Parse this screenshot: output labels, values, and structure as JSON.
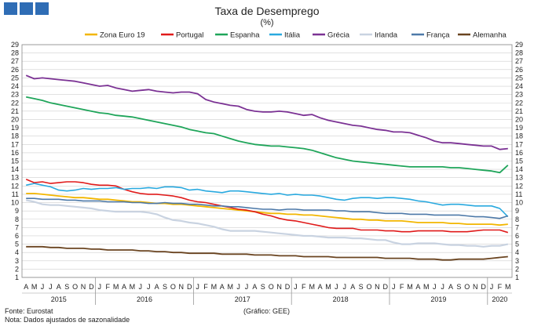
{
  "chart_data": {
    "type": "line",
    "title": "Taxa de Desemprego",
    "subtitle": "(%)",
    "ylim": [
      1,
      29
    ],
    "yticks": [
      1,
      2,
      3,
      4,
      5,
      6,
      7,
      8,
      9,
      10,
      11,
      12,
      13,
      14,
      15,
      16,
      17,
      18,
      19,
      20,
      21,
      22,
      23,
      24,
      25,
      26,
      27,
      28,
      29
    ],
    "month_labels": [
      "A",
      "M",
      "J",
      "J",
      "A",
      "S",
      "O",
      "N",
      "D",
      "J",
      "F",
      "M",
      "A",
      "M",
      "J",
      "J",
      "A",
      "S",
      "O",
      "N",
      "D",
      "J",
      "F",
      "M",
      "A",
      "M",
      "J",
      "J",
      "A",
      "S",
      "O",
      "N",
      "D",
      "J",
      "F",
      "M",
      "A",
      "M",
      "J",
      "J",
      "A",
      "S",
      "O",
      "N",
      "D",
      "J",
      "F",
      "M",
      "A",
      "M",
      "J",
      "J",
      "A",
      "S",
      "O",
      "N",
      "D",
      "J",
      "F",
      "M"
    ],
    "years": [
      {
        "label": "2015",
        "start": 0,
        "end": 8
      },
      {
        "label": "2016",
        "start": 9,
        "end": 20
      },
      {
        "label": "2017",
        "start": 21,
        "end": 32
      },
      {
        "label": "2018",
        "start": 33,
        "end": 44
      },
      {
        "label": "2019",
        "start": 45,
        "end": 56
      },
      {
        "label": "2020",
        "start": 57,
        "end": 59
      }
    ],
    "series": [
      {
        "name": "Zona Euro 19",
        "color": "#f2b600",
        "width": 1.8,
        "values": [
          11.1,
          11.1,
          11.0,
          10.9,
          10.8,
          10.7,
          10.6,
          10.6,
          10.5,
          10.4,
          10.4,
          10.3,
          10.2,
          10.1,
          10.1,
          10.0,
          9.9,
          9.9,
          9.8,
          9.8,
          9.7,
          9.6,
          9.5,
          9.4,
          9.3,
          9.2,
          9.1,
          9.0,
          8.9,
          8.8,
          8.7,
          8.7,
          8.6,
          8.6,
          8.5,
          8.5,
          8.4,
          8.3,
          8.2,
          8.1,
          8.0,
          8.0,
          7.9,
          7.9,
          7.8,
          7.8,
          7.8,
          7.7,
          7.6,
          7.6,
          7.6,
          7.6,
          7.5,
          7.5,
          7.4,
          7.4,
          7.4,
          7.4,
          7.3,
          7.4
        ]
      },
      {
        "name": "Portugal",
        "color": "#e01a1a",
        "width": 1.6,
        "values": [
          12.8,
          12.4,
          12.5,
          12.3,
          12.4,
          12.5,
          12.5,
          12.4,
          12.2,
          12.1,
          12.1,
          12.0,
          11.6,
          11.3,
          11.1,
          11.0,
          11.0,
          10.9,
          10.8,
          10.6,
          10.3,
          10.1,
          10.0,
          9.8,
          9.6,
          9.4,
          9.2,
          9.1,
          8.9,
          8.6,
          8.4,
          8.1,
          7.9,
          7.8,
          7.6,
          7.4,
          7.2,
          7.0,
          6.9,
          6.9,
          6.9,
          6.7,
          6.7,
          6.7,
          6.6,
          6.6,
          6.5,
          6.5,
          6.6,
          6.6,
          6.6,
          6.6,
          6.5,
          6.5,
          6.5,
          6.6,
          6.7,
          6.7,
          6.7,
          6.4
        ]
      },
      {
        "name": "Espanha",
        "color": "#1fa55a",
        "width": 1.8,
        "values": [
          22.7,
          22.5,
          22.3,
          22.0,
          21.8,
          21.6,
          21.4,
          21.2,
          21.0,
          20.8,
          20.7,
          20.5,
          20.4,
          20.3,
          20.1,
          19.9,
          19.7,
          19.5,
          19.3,
          19.1,
          18.8,
          18.6,
          18.4,
          18.3,
          18.0,
          17.7,
          17.4,
          17.2,
          17.0,
          16.9,
          16.8,
          16.8,
          16.7,
          16.6,
          16.5,
          16.3,
          16.0,
          15.7,
          15.4,
          15.2,
          15.0,
          14.9,
          14.8,
          14.7,
          14.6,
          14.5,
          14.4,
          14.3,
          14.3,
          14.3,
          14.3,
          14.3,
          14.2,
          14.2,
          14.1,
          14.0,
          13.9,
          13.8,
          13.6,
          14.5
        ]
      },
      {
        "name": "Itália",
        "color": "#29a9df",
        "width": 1.6,
        "values": [
          12.1,
          12.3,
          12.1,
          11.9,
          11.5,
          11.4,
          11.5,
          11.7,
          11.6,
          11.7,
          11.7,
          11.8,
          11.6,
          11.7,
          11.7,
          11.8,
          11.7,
          11.9,
          11.9,
          11.8,
          11.5,
          11.6,
          11.4,
          11.3,
          11.2,
          11.4,
          11.4,
          11.3,
          11.2,
          11.1,
          11.0,
          11.1,
          10.9,
          11.0,
          10.9,
          10.9,
          10.8,
          10.6,
          10.4,
          10.3,
          10.5,
          10.6,
          10.6,
          10.5,
          10.6,
          10.6,
          10.5,
          10.4,
          10.2,
          10.1,
          9.9,
          9.7,
          9.8,
          9.8,
          9.7,
          9.6,
          9.6,
          9.6,
          9.3,
          8.3
        ]
      },
      {
        "name": "Grécia",
        "color": "#7b3294",
        "width": 1.8,
        "values": [
          25.3,
          24.9,
          25.0,
          24.9,
          24.8,
          24.7,
          24.6,
          24.4,
          24.2,
          24.0,
          24.1,
          23.8,
          23.6,
          23.4,
          23.5,
          23.6,
          23.4,
          23.3,
          23.2,
          23.3,
          23.3,
          23.1,
          22.4,
          22.1,
          21.9,
          21.7,
          21.6,
          21.2,
          21.0,
          20.9,
          20.9,
          21.0,
          20.9,
          20.7,
          20.5,
          20.6,
          20.2,
          19.9,
          19.7,
          19.5,
          19.3,
          19.2,
          19.0,
          18.8,
          18.7,
          18.5,
          18.5,
          18.4,
          18.1,
          17.8,
          17.4,
          17.2,
          17.2,
          17.1,
          17.0,
          16.9,
          16.8,
          16.8,
          16.4,
          16.5
        ]
      },
      {
        "name": "Irlanda",
        "color": "#c9d3e1",
        "width": 2.2,
        "values": [
          10.3,
          10.1,
          9.8,
          9.7,
          9.7,
          9.6,
          9.5,
          9.4,
          9.3,
          9.1,
          9.0,
          8.9,
          8.9,
          8.9,
          8.9,
          8.8,
          8.6,
          8.2,
          7.9,
          7.8,
          7.6,
          7.5,
          7.3,
          7.1,
          6.8,
          6.6,
          6.6,
          6.6,
          6.6,
          6.5,
          6.4,
          6.3,
          6.2,
          6.1,
          6.0,
          6.0,
          5.9,
          5.8,
          5.8,
          5.8,
          5.7,
          5.7,
          5.6,
          5.5,
          5.5,
          5.2,
          5.0,
          5.0,
          5.1,
          5.1,
          5.1,
          5.0,
          4.9,
          4.9,
          4.8,
          4.8,
          4.7,
          4.8,
          4.8,
          5.0
        ]
      },
      {
        "name": "França",
        "color": "#4d79a8",
        "width": 1.6,
        "values": [
          10.5,
          10.5,
          10.4,
          10.4,
          10.4,
          10.3,
          10.3,
          10.2,
          10.2,
          10.2,
          10.1,
          10.1,
          10.1,
          10.0,
          10.0,
          9.9,
          9.9,
          10.0,
          9.9,
          9.9,
          9.8,
          9.8,
          9.7,
          9.6,
          9.6,
          9.5,
          9.5,
          9.4,
          9.3,
          9.2,
          9.2,
          9.1,
          9.2,
          9.2,
          9.1,
          9.1,
          9.1,
          9.1,
          9.0,
          9.0,
          8.9,
          8.9,
          8.9,
          8.8,
          8.7,
          8.7,
          8.7,
          8.6,
          8.6,
          8.6,
          8.5,
          8.5,
          8.5,
          8.5,
          8.4,
          8.3,
          8.3,
          8.2,
          8.1,
          8.4
        ]
      },
      {
        "name": "Alemanha",
        "color": "#6a4420",
        "width": 1.8,
        "values": [
          4.7,
          4.7,
          4.7,
          4.6,
          4.6,
          4.5,
          4.5,
          4.5,
          4.4,
          4.4,
          4.3,
          4.3,
          4.3,
          4.3,
          4.2,
          4.2,
          4.1,
          4.1,
          4.0,
          4.0,
          3.9,
          3.9,
          3.9,
          3.9,
          3.8,
          3.8,
          3.8,
          3.8,
          3.7,
          3.7,
          3.7,
          3.6,
          3.6,
          3.6,
          3.5,
          3.5,
          3.5,
          3.5,
          3.4,
          3.4,
          3.4,
          3.4,
          3.4,
          3.4,
          3.3,
          3.3,
          3.3,
          3.3,
          3.2,
          3.2,
          3.2,
          3.1,
          3.1,
          3.2,
          3.2,
          3.2,
          3.2,
          3.3,
          3.4,
          3.5
        ]
      }
    ]
  },
  "footer": {
    "source": "Fonte: Eurostat",
    "note": "Nota: Dados ajustados de sazonalidade",
    "credit": "(Gráfico: GEE)"
  }
}
